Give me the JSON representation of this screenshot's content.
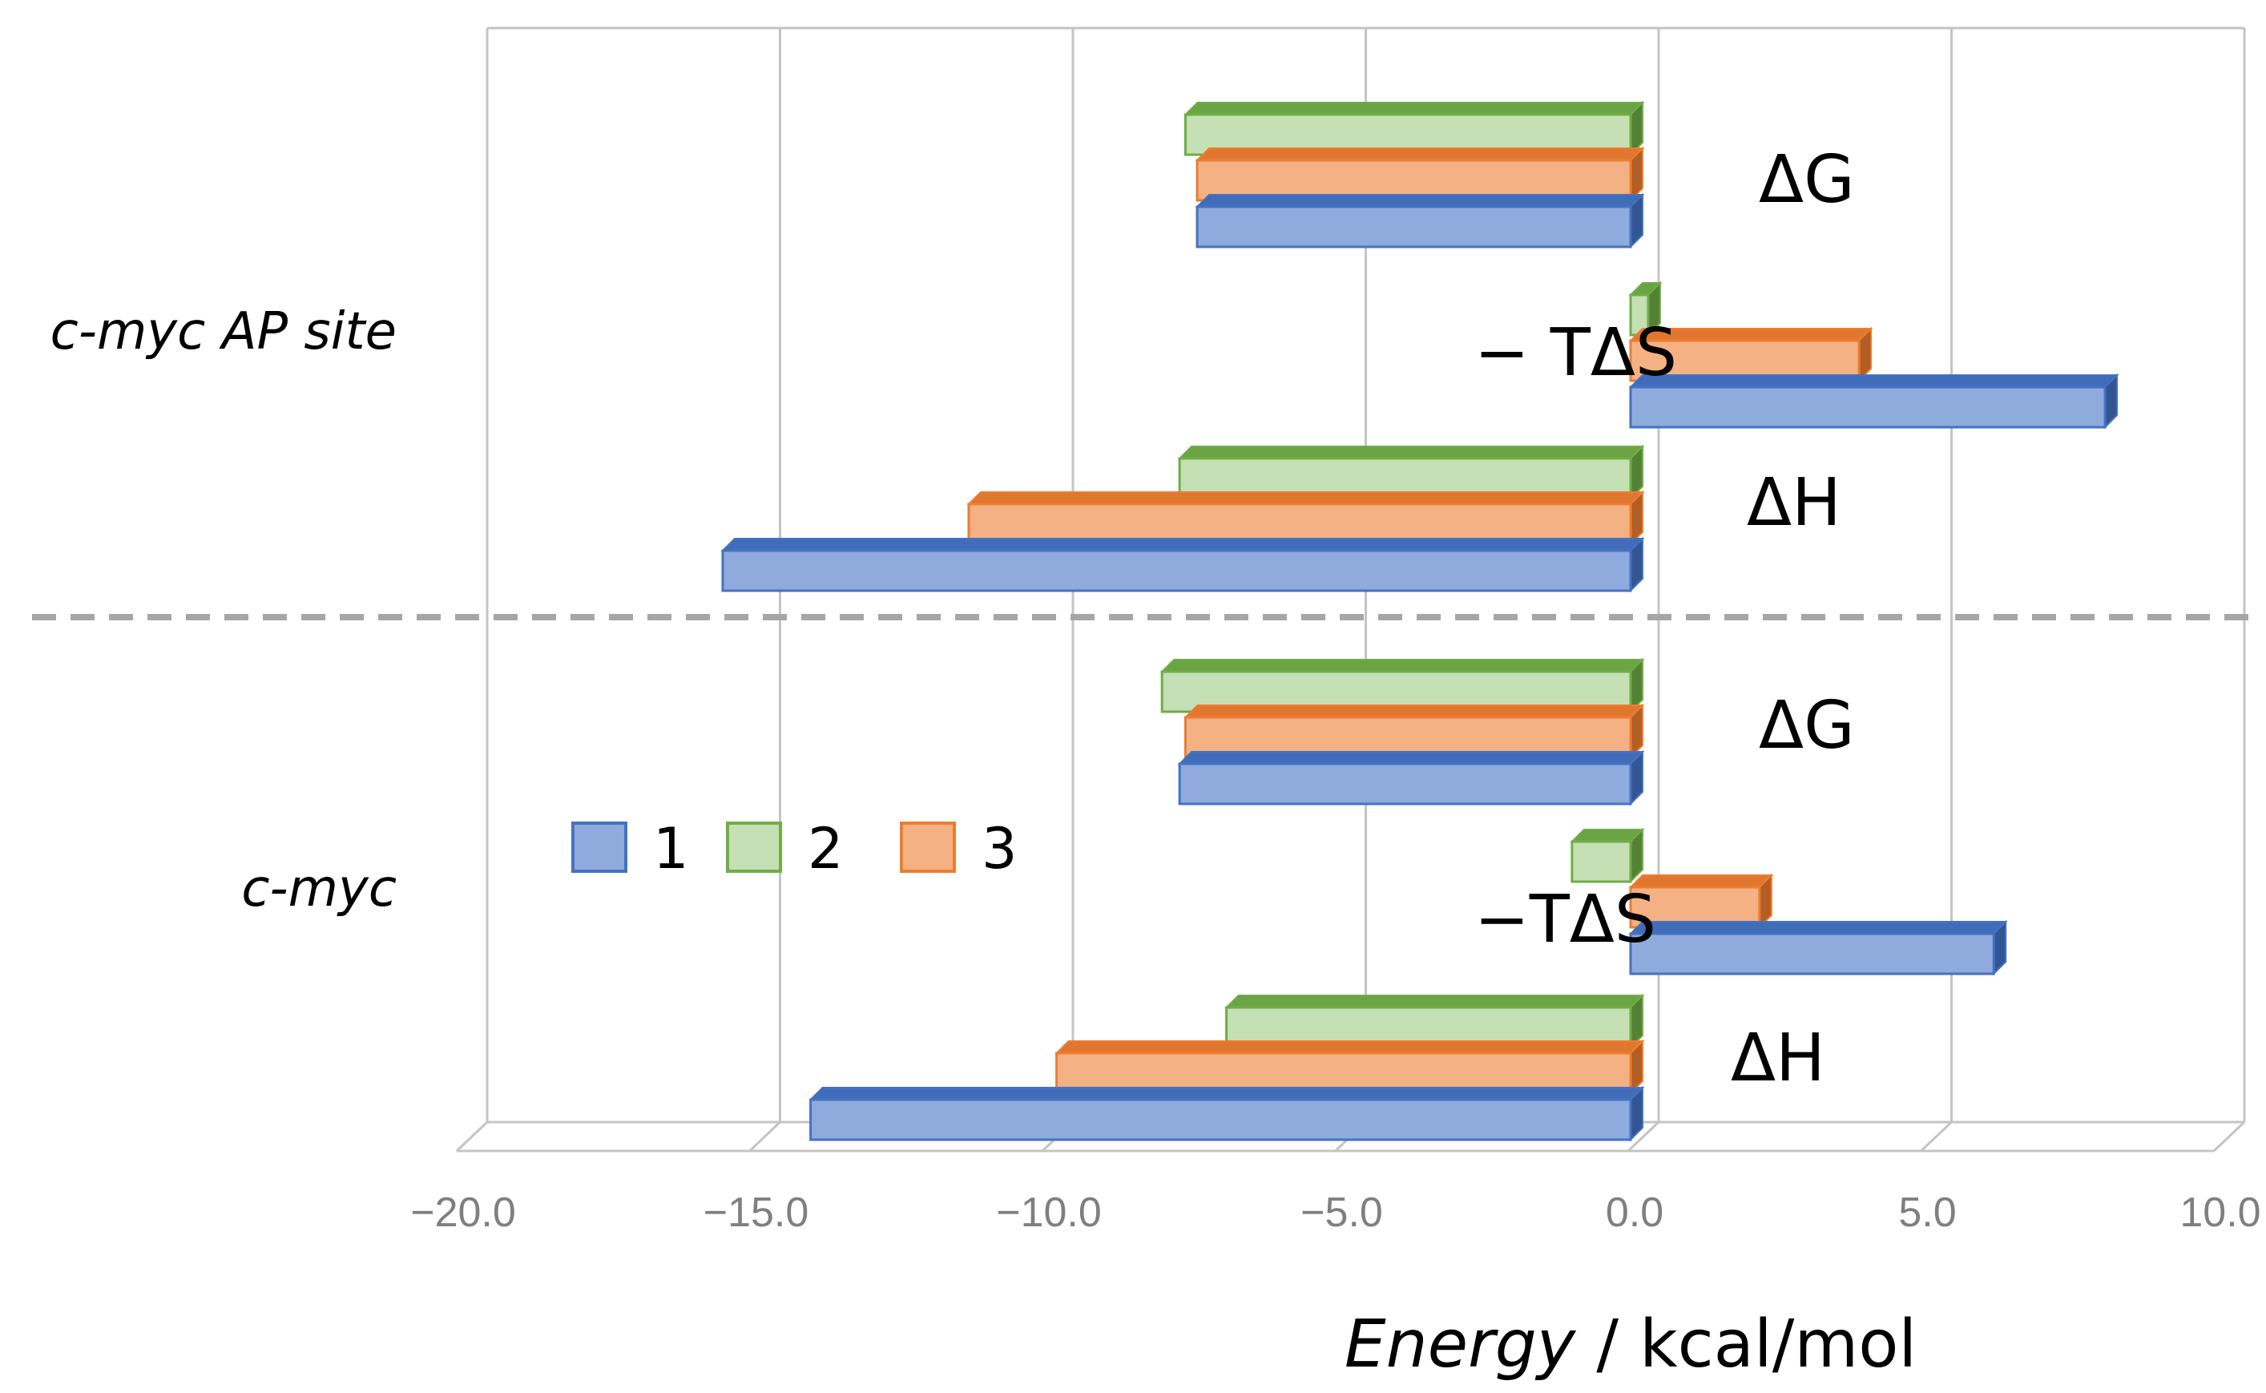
{
  "chart_data": {
    "type": "bar",
    "orientation": "horizontal",
    "title": "",
    "xlabel": "Energy / kcal/mol",
    "xlabel_italic": "Energy",
    "xlabel_rest": " / kcal/mol",
    "ylabel": "",
    "xlim": [
      -20.0,
      10.0
    ],
    "xticks": [
      -20.0,
      -15.0,
      -10.0,
      -5.0,
      0.0,
      5.0,
      10.0
    ],
    "xtick_labels": [
      "−20.0",
      "−15.0",
      "−10.0",
      "−5.0",
      "0.0",
      "5.0",
      "10.0"
    ],
    "grid": true,
    "legend_position": "inside-bottom-left",
    "series": [
      {
        "name": "1",
        "color": "#8faadc",
        "edge": "#4472c4"
      },
      {
        "name": "2",
        "color": "#c5e0b4",
        "edge": "#70ad47"
      },
      {
        "name": "3",
        "color": "#f4b183",
        "edge": "#ed7d31"
      }
    ],
    "groups": [
      {
        "name": "c-myc AP site",
        "components": [
          {
            "name": "ΔG",
            "values": {
              "1": -7.4,
              "2": -7.6,
              "3": -7.4
            }
          },
          {
            "name": "− TΔS",
            "values": {
              "1": 8.1,
              "2": 0.3,
              "3": 3.9
            }
          },
          {
            "name": "ΔH",
            "values": {
              "1": -15.5,
              "2": -7.7,
              "3": -11.3
            }
          }
        ]
      },
      {
        "name": "c-myc",
        "components": [
          {
            "name": "ΔG",
            "values": {
              "1": -7.7,
              "2": -8.0,
              "3": -7.6
            }
          },
          {
            "name": "−TΔS",
            "values": {
              "1": 6.2,
              "2": -1.0,
              "3": 2.2
            }
          },
          {
            "name": "ΔH",
            "values": {
              "1": -14.0,
              "2": -6.9,
              "3": -9.8
            }
          }
        ]
      }
    ]
  }
}
